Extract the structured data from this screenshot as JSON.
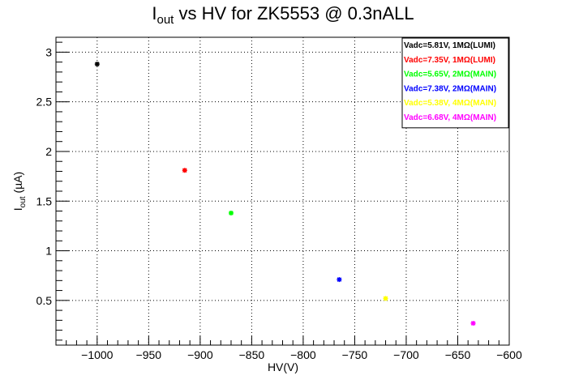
{
  "chart_data": {
    "type": "scatter",
    "title": "I",
    "title_sub": "out",
    "title_rest": " vs HV for ZK5553 @ 0.3nALL",
    "xlabel": "HV(V)",
    "ylabel": "I",
    "ylabel_sub": "out",
    "ylabel_rest": " (µA)",
    "xlim": [
      -1040,
      -600
    ],
    "ylim": [
      0.05,
      3.15
    ],
    "x_ticks": [
      -1000,
      -950,
      -900,
      -850,
      -800,
      -750,
      -700,
      -650,
      -600
    ],
    "x_tick_labels": [
      "−1000",
      "−950",
      "−900",
      "−850",
      "−800",
      "−750",
      "−700",
      "−650",
      "−600"
    ],
    "y_ticks": [
      0.5,
      1,
      1.5,
      2,
      2.5,
      3
    ],
    "y_tick_labels": [
      "0.5",
      "1",
      "1.5",
      "2",
      "2.5",
      "3"
    ],
    "grid": true,
    "legend_position": "top-right",
    "series": [
      {
        "name": "Vadc=5.81V, 1MΩ(LUMI)",
        "color": "#000000",
        "x": [
          -1000
        ],
        "y": [
          2.88
        ]
      },
      {
        "name": "Vadc=7.35V, 1MΩ(LUMI)",
        "color": "#ff0000",
        "x": [
          -915
        ],
        "y": [
          1.81
        ]
      },
      {
        "name": "Vadc=5.65V, 2MΩ(MAIN)",
        "color": "#00ff00",
        "x": [
          -870
        ],
        "y": [
          1.38
        ]
      },
      {
        "name": "Vadc=7.38V, 2MΩ(MAIN)",
        "color": "#0000ff",
        "x": [
          -765
        ],
        "y": [
          0.71
        ]
      },
      {
        "name": "Vadc=5.38V, 4MΩ(MAIN)",
        "color": "#ffff00",
        "x": [
          -720
        ],
        "y": [
          0.52
        ]
      },
      {
        "name": "Vadc=6.68V, 4MΩ(MAIN)",
        "color": "#ff00ff",
        "x": [
          -635
        ],
        "y": [
          0.27
        ]
      }
    ]
  }
}
